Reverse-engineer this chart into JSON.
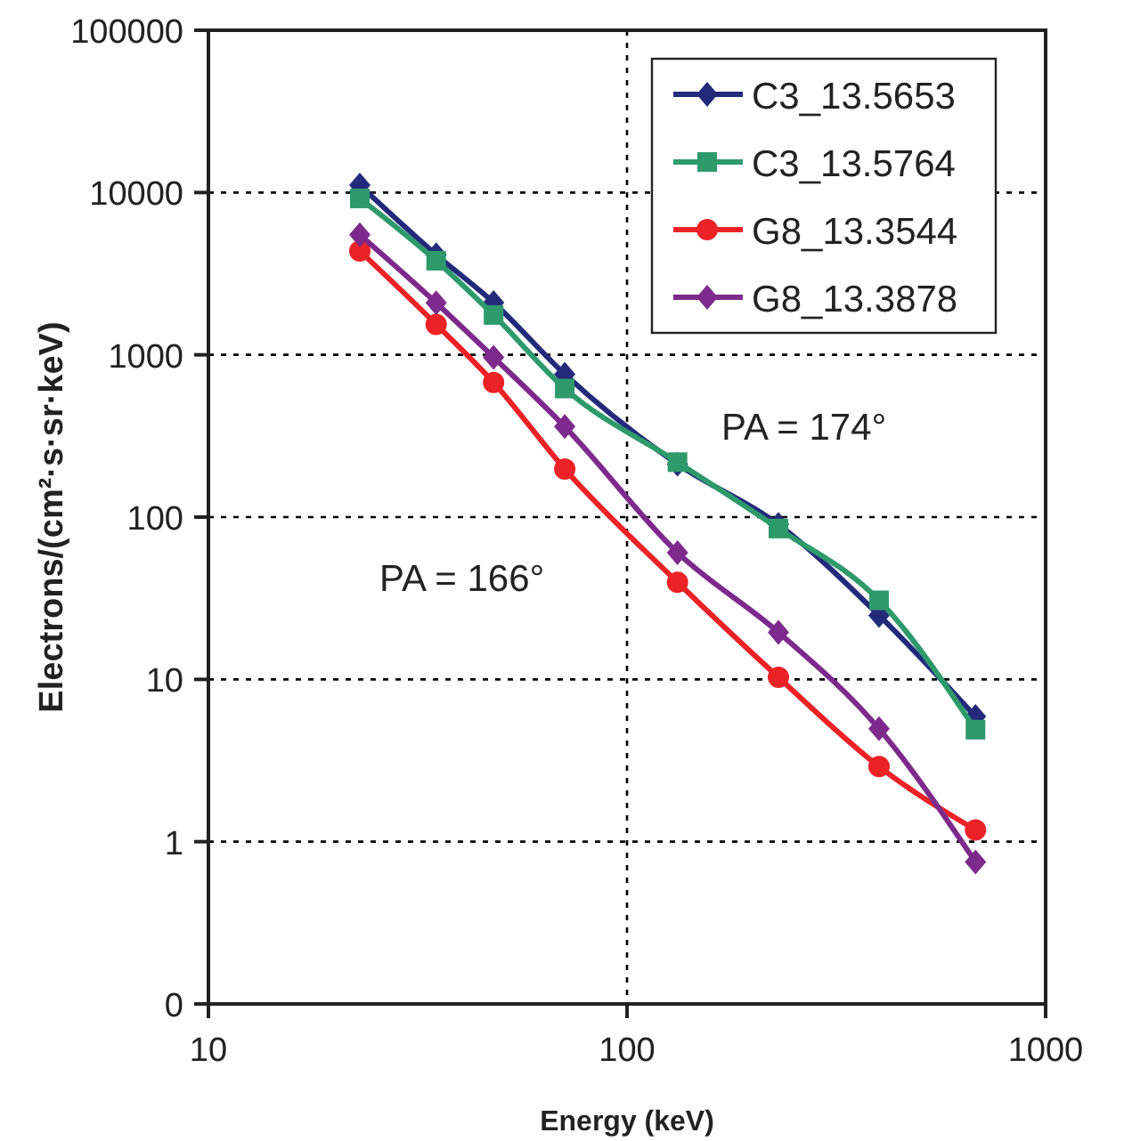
{
  "chart_data": {
    "type": "line",
    "xlabel": "Energy (keV)",
    "ylabel": "Electrons/(cm²·s·sr·keV)",
    "log": "xy",
    "grid": true,
    "legend": "top right",
    "xlim": [
      10,
      1000
    ],
    "xticks": [
      10,
      100,
      1000
    ],
    "ylim": [
      0.1,
      100000
    ],
    "yticks": [
      {
        "value": 0.1,
        "label": "0"
      },
      1,
      10,
      100,
      1000,
      10000,
      100000
    ],
    "x": [
      23,
      35,
      48,
      71,
      132,
      230,
      400,
      680
    ],
    "series": [
      {
        "name": "C3_13.5653",
        "color": "#232a7a",
        "marker": "diamond",
        "values": [
          11100,
          4140,
          2100,
          760,
          212,
          90,
          24.8,
          5.9
        ]
      },
      {
        "name": "C3_13.5764",
        "color": "#2e9a6c",
        "marker": "square",
        "values": [
          9200,
          3800,
          1760,
          620,
          218,
          85,
          30.7,
          4.9
        ]
      },
      {
        "name": "G8_13.3544",
        "color": "#ec2227",
        "marker": "circle",
        "values": [
          4360,
          1540,
          675,
          198,
          39.7,
          10.3,
          2.9,
          1.18
        ]
      },
      {
        "name": "G8_13.3878",
        "color": "#7d2a8c",
        "marker": "diamond",
        "values": [
          5490,
          2090,
          966,
          361,
          60.4,
          19.5,
          4.96,
          0.75
        ]
      }
    ],
    "annotations": [
      "PA = 174°",
      "PA = 166°"
    ]
  }
}
